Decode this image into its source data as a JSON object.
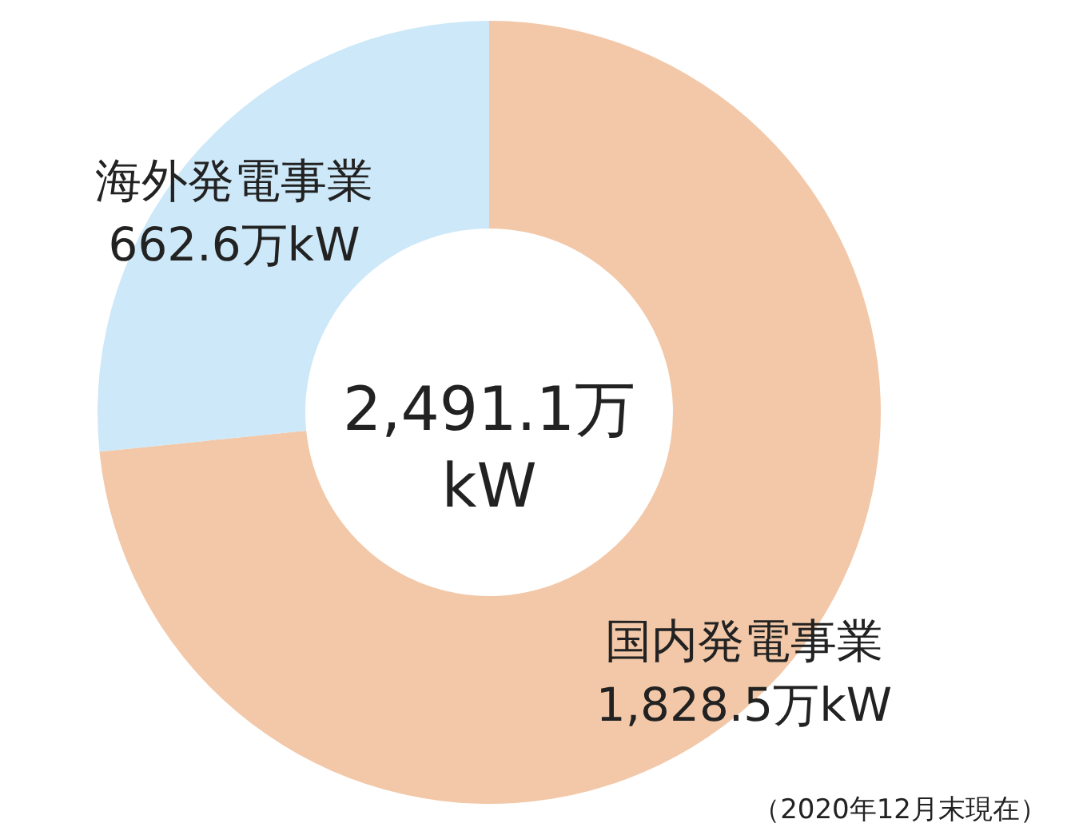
{
  "chart_data": {
    "type": "donut",
    "categories": [
      "国内発電事業",
      "海外発電事業"
    ],
    "values": [
      1828.5,
      662.6
    ],
    "value_labels": [
      "1,828.5万kW",
      "662.6万kW"
    ],
    "colors": [
      "#f2c8a8",
      "#cde8f8"
    ],
    "annotations": [
      "2,491.1万\nkW",
      "（2020年12月末現在）"
    ]
  }
}
